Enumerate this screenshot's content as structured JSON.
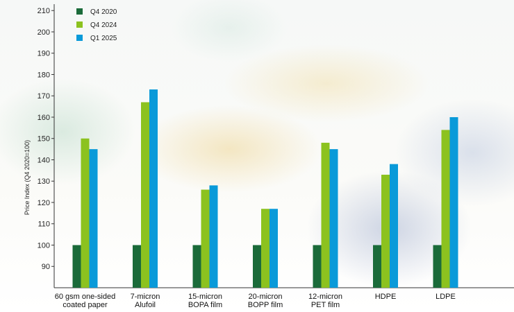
{
  "chart_data": {
    "type": "bar",
    "ylabel": "Price Index (Q4 2020=100)",
    "ylim": [
      80,
      213
    ],
    "yticks": [
      90,
      100,
      110,
      120,
      130,
      140,
      150,
      160,
      170,
      180,
      190,
      200,
      210
    ],
    "categories": [
      [
        "60 gsm one-sided",
        "coated paper"
      ],
      [
        "7-micron",
        "Alufoil"
      ],
      [
        "15-micron",
        "BOPA film"
      ],
      [
        "20-micron",
        "BOPP film"
      ],
      [
        "12-micron",
        "PET film"
      ],
      [
        "HDPE"
      ],
      [
        "LDPE"
      ]
    ],
    "series": [
      {
        "name": "Q4 2020",
        "color": "#1b6b3a",
        "values": [
          100,
          100,
          100,
          100,
          100,
          100,
          100
        ]
      },
      {
        "name": "Q4 2024",
        "color": "#8cc21f",
        "values": [
          150,
          167,
          126,
          117,
          148,
          133,
          154
        ]
      },
      {
        "name": "Q1 2025",
        "color": "#0a9ad9",
        "values": [
          145,
          173,
          128,
          117,
          145,
          138,
          160
        ]
      }
    ],
    "legend_position": "top-left",
    "grid": false
  }
}
